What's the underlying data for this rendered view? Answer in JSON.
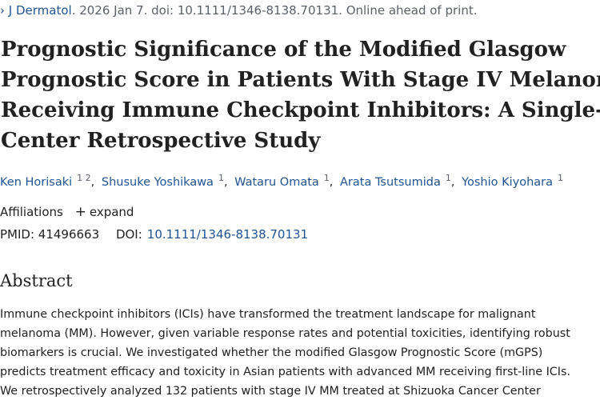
{
  "citation": {
    "journal": "J Dermatol",
    "rest": ". 2026 Jan 7. doi: 10.1111/1346-8138.70131. Online ahead of print."
  },
  "title_lines": [
    "Prognostic Significance of the Modified Glasgow",
    "Prognostic Score in Patients With Stage IV Melanoma",
    "Receiving Immune Checkpoint Inhibitors: A Single-",
    "Center Retrospective Study"
  ],
  "authors": [
    {
      "name": "Ken Horisaki",
      "affils": "1 2"
    },
    {
      "name": "Shusuke Yoshikawa",
      "affils": "1"
    },
    {
      "name": "Wataru Omata",
      "affils": "1"
    },
    {
      "name": "Arata Tsutsumida",
      "affils": "1"
    },
    {
      "name": "Yoshio Kiyohara",
      "affils": "1"
    }
  ],
  "affiliations": {
    "label": "Affiliations",
    "expand_label": "expand"
  },
  "ids": {
    "pmid_label": "PMID:",
    "pmid_value": "41496663",
    "doi_label": "DOI:",
    "doi_value": "10.1111/1346-8138.70131"
  },
  "abstract": {
    "heading": "Abstract",
    "lines": [
      "Immune checkpoint inhibitors (ICIs) have transformed the treatment landscape for malignant",
      "melanoma (MM). However, given variable response rates and potential toxicities, identifying robust",
      "biomarkers is crucial. We investigated whether the modified Glasgow Prognostic Score (mGPS)",
      "predicts treatment efficacy and toxicity in Asian patients with advanced MM receiving first-line ICIs.",
      "We retrospectively analyzed 132 patients with stage IV MM treated at Shizuoka Cancer Center"
    ]
  }
}
